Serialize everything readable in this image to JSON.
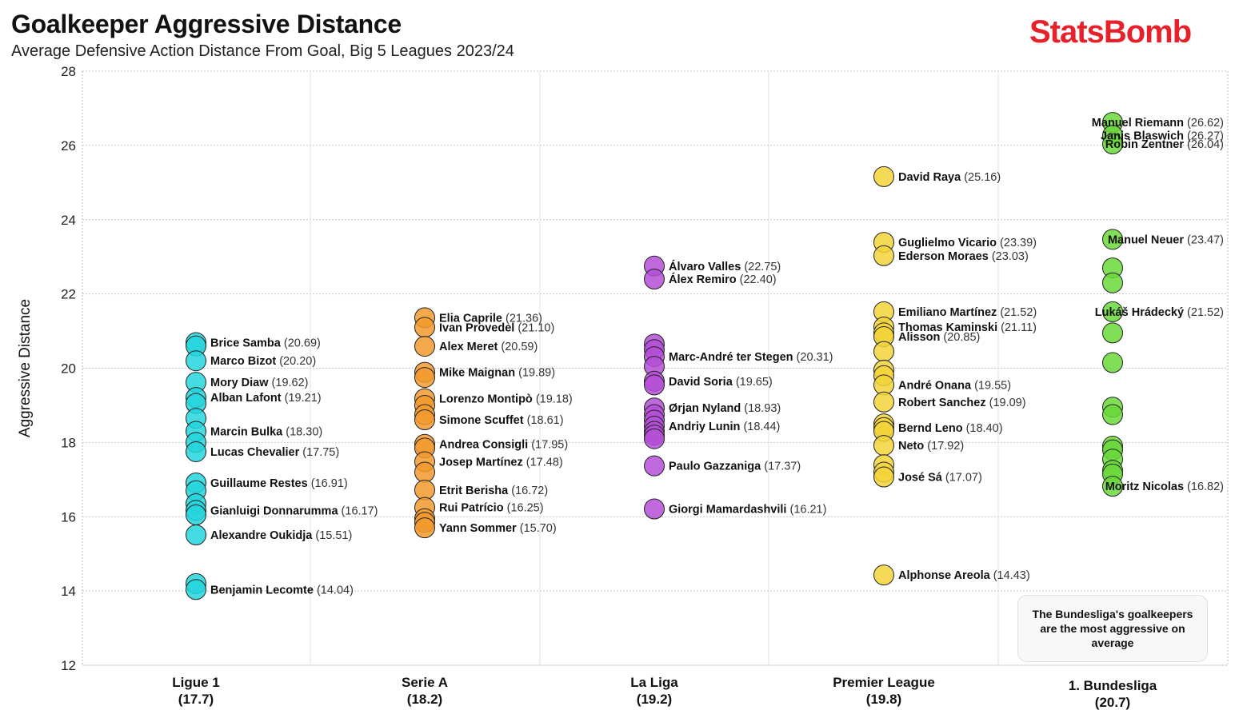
{
  "header": {
    "title": "Goalkeeper Aggressive Distance",
    "subtitle": "Average Defensive Action Distance From Goal, Big 5 Leagues 2023/24",
    "brand": "StatsBomb"
  },
  "note": "The Bundesliga's goalkeepers are the most aggressive on average",
  "colors": {
    "Ligue 1": "#25d5dd",
    "Serie A": "#f29a2e",
    "La Liga": "#b44fd6",
    "Premier League": "#f2d43a",
    "1. Bundesliga": "#6ad83a",
    "brand": "#e8202a"
  },
  "chart_data": {
    "type": "scatter",
    "title": "Goalkeeper Aggressive Distance",
    "subtitle": "Average Defensive Action Distance From Goal, Big 5 Leagues 2023/24",
    "xlabel": "",
    "ylabel": "Aggressive Distance",
    "ylim": [
      12,
      28
    ],
    "yticks": [
      12,
      14,
      16,
      18,
      20,
      22,
      24,
      26,
      28
    ],
    "grid": true,
    "categories": [
      {
        "name": "Ligue 1",
        "average": "(17.7)"
      },
      {
        "name": "Serie A",
        "average": "(18.2)"
      },
      {
        "name": "La Liga",
        "average": "(19.2)"
      },
      {
        "name": "Premier League",
        "average": "(19.8)"
      },
      {
        "name": "1. Bundesliga",
        "average": "(20.7)"
      }
    ],
    "series": [
      {
        "league": "Ligue 1",
        "values": [
          20.69,
          20.6,
          20.2,
          19.62,
          19.21,
          19.05,
          18.65,
          18.3,
          18.0,
          17.75,
          16.91,
          16.7,
          16.35,
          16.17,
          16.05,
          15.51,
          14.2,
          14.04
        ],
        "labeled": [
          {
            "name": "Brice Samba",
            "value": 20.69,
            "text": "(20.69)"
          },
          {
            "name": "Marco Bizot",
            "value": 20.2,
            "text": "(20.20)"
          },
          {
            "name": "Mory Diaw",
            "value": 19.62,
            "text": "(19.62)"
          },
          {
            "name": "Alban Lafont",
            "value": 19.21,
            "text": "(19.21)"
          },
          {
            "name": "Marcin Bulka",
            "value": 18.3,
            "text": "(18.30)"
          },
          {
            "name": "Lucas Chevalier",
            "value": 17.75,
            "text": "(17.75)"
          },
          {
            "name": "Guillaume Restes",
            "value": 16.91,
            "text": "(16.91)"
          },
          {
            "name": "Gianluigi Donnarumma",
            "value": 16.17,
            "text": "(16.17)"
          },
          {
            "name": "Alexandre Oukidja",
            "value": 15.51,
            "text": "(15.51)"
          },
          {
            "name": "Benjamin Lecomte",
            "value": 14.04,
            "text": "(14.04)"
          }
        ]
      },
      {
        "league": "Serie A",
        "values": [
          21.36,
          21.1,
          20.59,
          19.89,
          19.75,
          19.18,
          19.0,
          18.75,
          18.61,
          17.95,
          17.85,
          17.48,
          17.2,
          16.72,
          16.25,
          15.95,
          15.85,
          15.7
        ],
        "labeled": [
          {
            "name": "Elia Caprile",
            "value": 21.36,
            "text": "(21.36)"
          },
          {
            "name": "Ivan Provedel",
            "value": 21.1,
            "text": "(21.10)"
          },
          {
            "name": "Alex Meret",
            "value": 20.59,
            "text": "(20.59)"
          },
          {
            "name": "Mike Maignan",
            "value": 19.89,
            "text": "(19.89)"
          },
          {
            "name": "Lorenzo Montipò",
            "value": 19.18,
            "text": "(19.18)"
          },
          {
            "name": "Simone Scuffet",
            "value": 18.61,
            "text": "(18.61)"
          },
          {
            "name": "Andrea Consigli",
            "value": 17.95,
            "text": "(17.95)"
          },
          {
            "name": "Josep Martínez",
            "value": 17.48,
            "text": "(17.48)"
          },
          {
            "name": "Etrit Berisha",
            "value": 16.72,
            "text": "(16.72)"
          },
          {
            "name": "Rui Patrício",
            "value": 16.25,
            "text": "(16.25)"
          },
          {
            "name": "Yann Sommer",
            "value": 15.7,
            "text": "(15.70)"
          }
        ]
      },
      {
        "league": "La Liga",
        "values": [
          22.75,
          22.4,
          20.65,
          20.5,
          20.31,
          20.05,
          19.65,
          19.55,
          18.93,
          18.75,
          18.6,
          18.44,
          18.3,
          18.2,
          18.1,
          17.37,
          16.21
        ],
        "labeled": [
          {
            "name": "Álvaro Valles",
            "value": 22.75,
            "text": "(22.75)"
          },
          {
            "name": "Álex Remiro",
            "value": 22.4,
            "text": "(22.40)"
          },
          {
            "name": "Marc-André ter Stegen",
            "value": 20.31,
            "text": "(20.31)"
          },
          {
            "name": "David Soria",
            "value": 19.65,
            "text": "(19.65)"
          },
          {
            "name": "Ørjan Nyland",
            "value": 18.93,
            "text": "(18.93)"
          },
          {
            "name": "Andriy Lunin",
            "value": 18.44,
            "text": "(18.44)"
          },
          {
            "name": "Paulo Gazzaniga",
            "value": 17.37,
            "text": "(17.37)"
          },
          {
            "name": "Giorgi Mamardashvili",
            "value": 16.21,
            "text": "(16.21)"
          }
        ]
      },
      {
        "league": "Premier League",
        "values": [
          25.16,
          23.39,
          23.03,
          21.52,
          21.11,
          20.95,
          20.85,
          20.45,
          19.95,
          19.8,
          19.55,
          19.09,
          18.5,
          18.4,
          18.3,
          17.92,
          17.4,
          17.2,
          17.07,
          14.43
        ],
        "labeled": [
          {
            "name": "David Raya",
            "value": 25.16,
            "text": "(25.16)"
          },
          {
            "name": "Guglielmo Vicario",
            "value": 23.39,
            "text": "(23.39)"
          },
          {
            "name": "Ederson Moraes",
            "value": 23.03,
            "text": "(23.03)"
          },
          {
            "name": "Emiliano Martínez",
            "value": 21.52,
            "text": "(21.52)"
          },
          {
            "name": "Thomas Kaminski",
            "value": 21.11,
            "text": "(21.11)"
          },
          {
            "name": "Alisson",
            "value": 20.85,
            "text": "(20.85)"
          },
          {
            "name": "André Onana",
            "value": 19.55,
            "text": "(19.55)"
          },
          {
            "name": "Robert Sanchez",
            "value": 19.09,
            "text": "(19.09)"
          },
          {
            "name": "Bernd Leno",
            "value": 18.4,
            "text": "(18.40)"
          },
          {
            "name": "Neto",
            "value": 17.92,
            "text": "(17.92)"
          },
          {
            "name": "José Sá",
            "value": 17.07,
            "text": "(17.07)"
          },
          {
            "name": "Alphonse Areola",
            "value": 14.43,
            "text": "(14.43)"
          }
        ]
      },
      {
        "league": "1. Bundesliga",
        "values": [
          26.62,
          26.27,
          26.04,
          23.47,
          22.7,
          22.3,
          21.52,
          20.95,
          20.15,
          18.95,
          18.75,
          17.9,
          17.8,
          17.55,
          17.25,
          17.15,
          16.82
        ],
        "labeled": [
          {
            "name": "Manuel Riemann",
            "value": 26.62,
            "text": "(26.62)",
            "side": "left"
          },
          {
            "name": "Janis Blaswich",
            "value": 26.27,
            "text": "(26.27)",
            "side": "left"
          },
          {
            "name": "Robin Zentner",
            "value": 26.04,
            "text": "(26.04)",
            "side": "left"
          },
          {
            "name": "Manuel Neuer",
            "value": 23.47,
            "text": "(23.47)",
            "side": "left"
          },
          {
            "name": "Lukáš Hrádecký",
            "value": 21.52,
            "text": "(21.52)",
            "side": "left"
          },
          {
            "name": "Moritz Nicolas",
            "value": 16.82,
            "text": "(16.82)",
            "side": "left"
          }
        ]
      }
    ]
  }
}
